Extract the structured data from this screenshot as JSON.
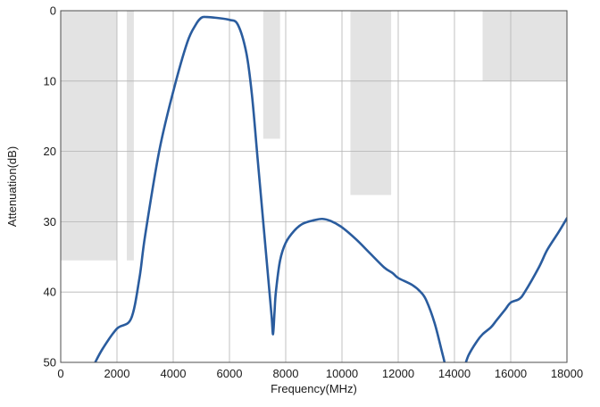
{
  "chart_data": {
    "type": "line",
    "title": "",
    "xlabel": "Frequency(MHz)",
    "ylabel": "Attenuation(dB)",
    "xlim": [
      0,
      18000
    ],
    "ylim": [
      0,
      50
    ],
    "y_inverted": true,
    "grid": true,
    "x_ticks": [
      0,
      2000,
      4000,
      6000,
      8000,
      10000,
      12000,
      14000,
      16000,
      18000
    ],
    "y_ticks": [
      0,
      10,
      20,
      30,
      40,
      50
    ],
    "x_tick_labels": [
      "0",
      "2000",
      "4000",
      "6000",
      "8000",
      "10000",
      "12000",
      "14000",
      "16000",
      "18000"
    ],
    "y_tick_labels": [
      "0",
      "10",
      "20",
      "30",
      "40",
      "50"
    ],
    "colors": {
      "line": "#2a5c9e",
      "mask": "#e3e3e3",
      "grid": "#b3b3b3",
      "axis": "#4d4d4d"
    },
    "mask_regions": [
      {
        "x0": 0,
        "x1": 2000,
        "y": 35.5
      },
      {
        "x0": 2350,
        "x1": 2600,
        "y": 35.5
      },
      {
        "x0": 7200,
        "x1": 7800,
        "y": 18.2
      },
      {
        "x0": 10300,
        "x1": 11750,
        "y": 26.2
      },
      {
        "x0": 15000,
        "x1": 18000,
        "y": 10
      }
    ],
    "series": [
      {
        "x": [
          1200,
          1500,
          2000,
          2500,
          2800,
          3000,
          3500,
          4000,
          4500,
          4800,
          5000,
          5200,
          5500,
          6000,
          6300,
          6600,
          6800,
          7000,
          7200,
          7400,
          7500,
          7550,
          7600,
          7650,
          7800,
          8000,
          8300,
          8600,
          9000,
          9300,
          9600,
          10000,
          10500,
          11000,
          11500,
          11800,
          12000,
          12500,
          12800,
          13000,
          13300,
          13600,
          13800,
          14200,
          14500,
          14800,
          15000,
          15300,
          15500,
          15800,
          16000,
          16300,
          16500,
          17000,
          17300,
          17700,
          18000
        ],
        "y": [
          50.2,
          48,
          45.2,
          43.8,
          38,
          32,
          20,
          11.5,
          4.5,
          2,
          1,
          0.9,
          1,
          1.3,
          2,
          6,
          12,
          21,
          30,
          39,
          43.5,
          46,
          43,
          40,
          35.5,
          33,
          31.3,
          30.3,
          29.8,
          29.6,
          29.9,
          30.8,
          32.5,
          34.5,
          36.5,
          37.3,
          38,
          39,
          40,
          41.2,
          44.5,
          49.2,
          52,
          52,
          49,
          47,
          46,
          45,
          44,
          42.5,
          41.5,
          41,
          40,
          36.5,
          34,
          31.5,
          29.5
        ]
      }
    ]
  }
}
